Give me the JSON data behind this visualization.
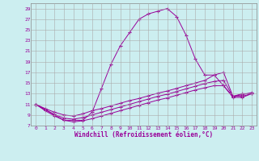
{
  "xlabel": "Windchill (Refroidissement éolien,°C)",
  "background_color": "#cceef0",
  "grid_color": "#aaaaaa",
  "line_color": "#990099",
  "xlim": [
    -0.5,
    23.5
  ],
  "ylim": [
    7,
    30
  ],
  "yticks": [
    7,
    9,
    11,
    13,
    15,
    17,
    19,
    21,
    23,
    25,
    27,
    29
  ],
  "xticks": [
    0,
    1,
    2,
    3,
    4,
    5,
    6,
    7,
    8,
    9,
    10,
    11,
    12,
    13,
    14,
    15,
    16,
    17,
    18,
    19,
    20,
    21,
    22,
    23
  ],
  "curve1_x": [
    0,
    1,
    2,
    3,
    4,
    5,
    6,
    7,
    8,
    9,
    10,
    11,
    12,
    13,
    14,
    15,
    16,
    17,
    18,
    19,
    20,
    21,
    22,
    23
  ],
  "curve1_y": [
    11.0,
    10.0,
    9.0,
    8.0,
    8.0,
    8.0,
    9.5,
    14.0,
    18.5,
    22.0,
    24.5,
    27.0,
    28.0,
    28.5,
    29.0,
    27.5,
    24.0,
    19.5,
    16.5,
    16.5,
    14.5,
    12.5,
    13.0,
    13.0
  ],
  "curve2_x": [
    0,
    1,
    2,
    3,
    4,
    5,
    6,
    7,
    8,
    9,
    10,
    11,
    12,
    13,
    14,
    15,
    16,
    17,
    18,
    19,
    20,
    21,
    22,
    23
  ],
  "curve2_y": [
    11.0,
    10.2,
    9.5,
    9.0,
    8.8,
    9.2,
    9.8,
    10.2,
    10.7,
    11.2,
    11.7,
    12.1,
    12.6,
    13.1,
    13.5,
    14.0,
    14.5,
    15.0,
    15.5,
    16.5,
    17.0,
    12.5,
    12.8,
    13.2
  ],
  "curve3_x": [
    0,
    1,
    2,
    3,
    4,
    5,
    6,
    7,
    8,
    9,
    10,
    11,
    12,
    13,
    14,
    15,
    16,
    17,
    18,
    19,
    20,
    21,
    22,
    23
  ],
  "curve3_y": [
    11.0,
    10.0,
    9.1,
    8.4,
    8.2,
    8.5,
    9.0,
    9.5,
    10.0,
    10.5,
    11.0,
    11.5,
    12.0,
    12.5,
    12.9,
    13.4,
    13.9,
    14.4,
    14.9,
    15.3,
    15.5,
    12.5,
    12.5,
    13.0
  ],
  "curve4_x": [
    0,
    1,
    2,
    3,
    4,
    5,
    6,
    7,
    8,
    9,
    10,
    11,
    12,
    13,
    14,
    15,
    16,
    17,
    18,
    19,
    20,
    21,
    22,
    23
  ],
  "curve4_y": [
    11.0,
    9.8,
    8.8,
    8.0,
    7.7,
    7.9,
    8.3,
    8.8,
    9.3,
    9.8,
    10.3,
    10.8,
    11.3,
    11.8,
    12.2,
    12.7,
    13.2,
    13.7,
    14.1,
    14.5,
    14.5,
    12.3,
    12.3,
    13.0
  ]
}
